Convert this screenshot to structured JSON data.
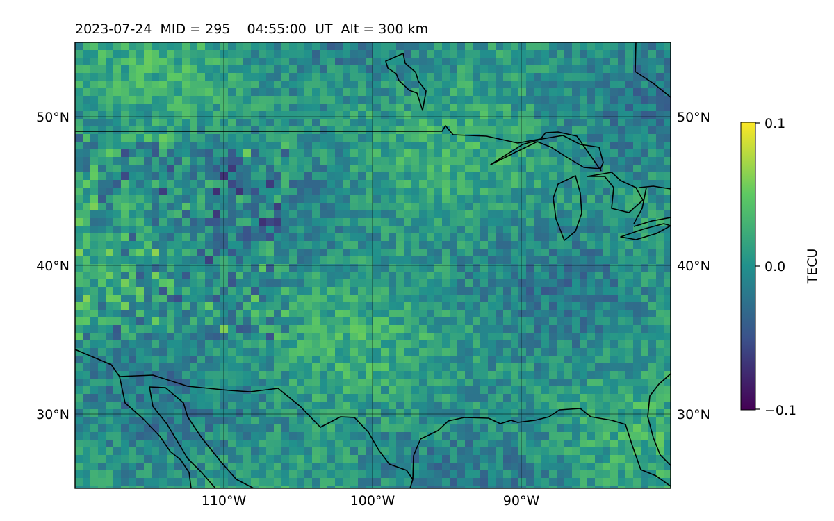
{
  "title": "2023-07-24  MID = 295    04:55:00  UT  Alt = 300 km",
  "map": {
    "lat_labels": [
      "50°N",
      "40°N",
      "30°N"
    ],
    "lon_labels": [
      "110°W",
      "100°W",
      "90°W"
    ]
  },
  "colorbar": {
    "label": "TECU",
    "ticks": [
      "0.1",
      "0.0",
      "−0.1"
    ]
  },
  "colors": {
    "viridis": [
      "#440154",
      "#3b528b",
      "#21918c",
      "#5ec962",
      "#fde725"
    ],
    "coastline": "#000000",
    "gridline": "#000000"
  },
  "chart_data": {
    "type": "heatmap",
    "title": "2023-07-24  MID = 295    04:55:00  UT  Alt = 300 km",
    "xlabel": "",
    "ylabel": "",
    "x_ticks": [
      "110°W",
      "100°W",
      "90°W"
    ],
    "y_ticks": [
      "50°N",
      "40°N",
      "30°N"
    ],
    "lon_range": [
      -120,
      -80
    ],
    "lat_range": [
      25,
      55
    ],
    "colorbar_label": "TECU",
    "value_range": [
      -0.1,
      0.1
    ],
    "colormap": "viridis",
    "grid": true
  }
}
